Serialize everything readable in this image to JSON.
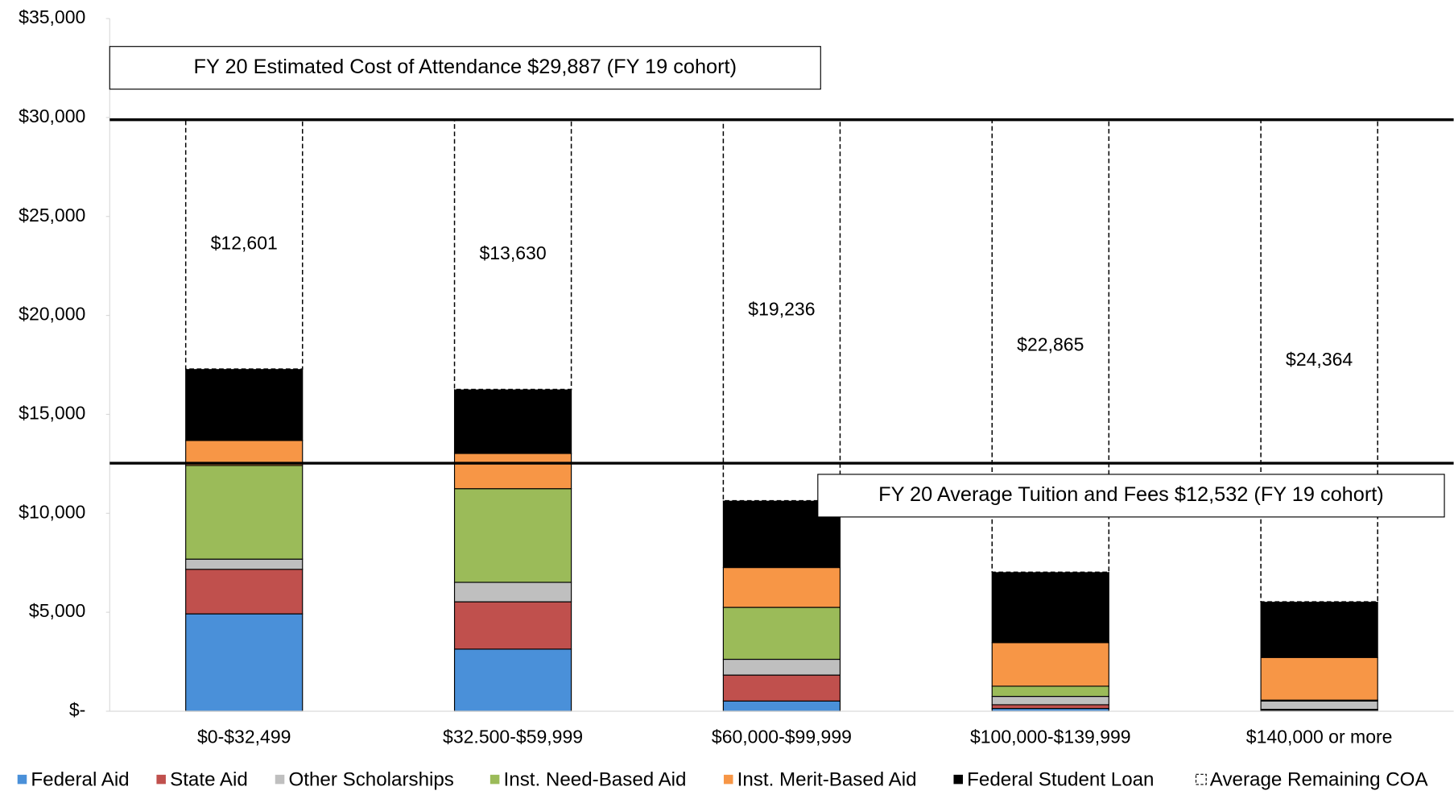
{
  "chart_data": {
    "type": "stacked_bar",
    "categories": [
      "$0-$32,499",
      "$32.500-$59,999",
      "$60,000-$99,999",
      "$100,000-$139,999",
      "$140,000 or more"
    ],
    "series": [
      {
        "name": "Federal Aid",
        "color": "#4a90d9",
        "values": [
          4920,
          3139,
          515,
          140,
          47
        ]
      },
      {
        "name": "State Aid",
        "color": "#c0504d",
        "values": [
          2250,
          2390,
          1312,
          188,
          47
        ]
      },
      {
        "name": "Other Scholarships",
        "color": "#bfbfbf",
        "values": [
          515,
          984,
          797,
          422,
          421
        ]
      },
      {
        "name": "Inst. Need-Based Aid",
        "color": "#9bbb59",
        "values": [
          4732,
          4732,
          2624,
          515,
          47
        ]
      },
      {
        "name": "Inst. Merit-Based Aid",
        "color": "#f79646",
        "values": [
          1265,
          1780,
          2014,
          2202,
          2155
        ]
      },
      {
        "name": "Federal Student Loan",
        "color": "#000000",
        "values": [
          3608,
          3233,
          3374,
          3561,
          2812
        ]
      },
      {
        "name": "Average Remaining COA",
        "color": "#ffffff",
        "values": [
          12601,
          13630,
          19236,
          22865,
          24364
        ],
        "value_labels": [
          "$12,601",
          "$13,630",
          "$19,236",
          "$22,865",
          "$24,364"
        ]
      }
    ],
    "reference_lines": [
      {
        "label": "FY 20 Estimated Cost of Attendance $29,887 (FY 19 cohort)",
        "value": 29887
      },
      {
        "label": "FY 20 Average Tuition and Fees $12,532 (FY 19 cohort)",
        "value": 12532
      }
    ],
    "ylim": [
      0,
      35000
    ],
    "yticks": [
      {
        "value": 0,
        "label": "$-"
      },
      {
        "value": 5000,
        "label": "$5,000"
      },
      {
        "value": 10000,
        "label": "$10,000"
      },
      {
        "value": 15000,
        "label": "$15,000"
      },
      {
        "value": 20000,
        "label": "$20,000"
      },
      {
        "value": 25000,
        "label": "$25,000"
      },
      {
        "value": 30000,
        "label": "$30,000"
      },
      {
        "value": 35000,
        "label": "$35,000"
      }
    ],
    "legend": "bottom"
  }
}
